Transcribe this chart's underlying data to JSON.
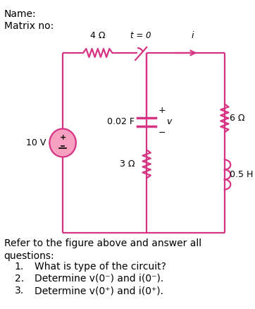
{
  "name_label": "Name:",
  "matrix_label": "Matrix no:",
  "background_color": "#ffffff",
  "circuit_color": "#d63384",
  "text_color": "#000000",
  "q_intro": "Refer to the figure above and answer all\nquestions:",
  "q1": "What is type of the circuit?",
  "q2": "Determine v(0⁻) and i(0⁻).",
  "q3": "Determine v(0⁺) and i(0⁺).",
  "resistor1_label": "4 Ω",
  "resistor2_label": "6 Ω",
  "resistor3_label": "3 Ω",
  "capacitor_label": "0.02 F",
  "inductor_label": "0.5 H",
  "source_label": "10 V",
  "switch_label": "t = 0",
  "current_label": "i",
  "voltage_label": "v"
}
